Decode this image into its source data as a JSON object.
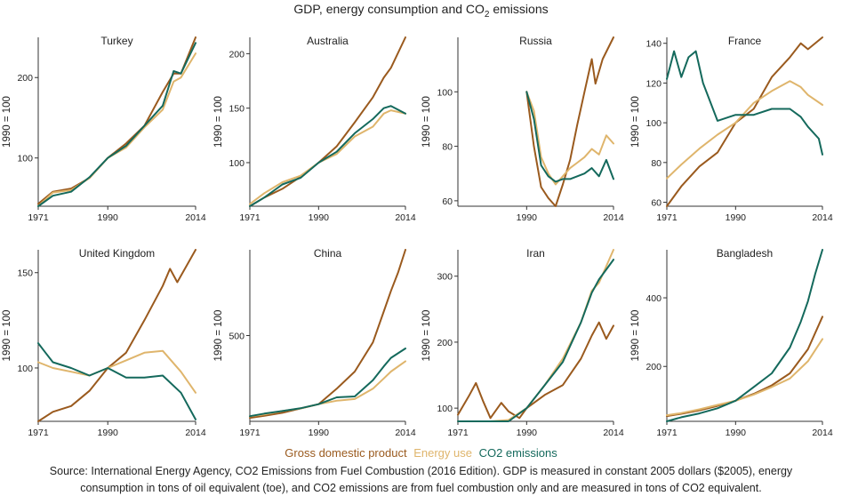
{
  "title": {
    "prefix": "GDP, energy consumption and CO",
    "sub": "2",
    "suffix": " emissions"
  },
  "legend": {
    "items": [
      {
        "label": "Gross domestic product",
        "color": "#9a5a1e"
      },
      {
        "label": "Energy use",
        "color": "#dfb56c"
      },
      {
        "label": "CO2 emissions",
        "color": "#14695c"
      }
    ]
  },
  "source": "Source: International Energy Agency, CO2 Emissions from Fuel Combustion (2016 Edition). GDP is measured in constant 2005 dollars ($2005), energy consumption in tons of oil equivalent (toe), and CO2 emissions are from fuel combustion only and are measured in tons of CO2 equivalent.",
  "chart_data": [
    {
      "type": "line",
      "title": "Turkey",
      "ylabel": "1990 = 100",
      "xticks": [
        1971,
        1990,
        2014
      ],
      "yticks": [
        100,
        200
      ],
      "xlim": [
        1971,
        2014
      ],
      "ylim": [
        40,
        250
      ],
      "series": [
        {
          "name": "Gross domestic product",
          "x": [
            1971,
            1975,
            1980,
            1985,
            1990,
            1995,
            2000,
            2005,
            2008,
            2010,
            2014
          ],
          "values": [
            43,
            58,
            62,
            75,
            100,
            118,
            140,
            182,
            205,
            205,
            252
          ]
        },
        {
          "name": "Energy use",
          "x": [
            1971,
            1975,
            1980,
            1985,
            1990,
            1995,
            2000,
            2005,
            2008,
            2010,
            2014
          ],
          "values": [
            40,
            57,
            60,
            75,
            100,
            113,
            138,
            160,
            195,
            200,
            230
          ]
        },
        {
          "name": "CO2 emissions",
          "x": [
            1971,
            1975,
            1980,
            1985,
            1990,
            1995,
            2000,
            2005,
            2008,
            2010,
            2014
          ],
          "values": [
            38,
            53,
            58,
            76,
            100,
            115,
            140,
            165,
            208,
            205,
            243
          ]
        }
      ]
    },
    {
      "type": "line",
      "title": "Australia",
      "ylabel": "1990 = 100",
      "xticks": [
        1971,
        1990,
        2014
      ],
      "yticks": [
        100,
        150,
        200
      ],
      "xlim": [
        1971,
        2014
      ],
      "ylim": [
        60,
        215
      ],
      "series": [
        {
          "name": "Gross domestic product",
          "x": [
            1971,
            1975,
            1980,
            1985,
            1990,
            1995,
            2000,
            2005,
            2008,
            2010,
            2014
          ],
          "values": [
            60,
            68,
            76,
            87,
            100,
            115,
            137,
            160,
            178,
            187,
            215
          ]
        },
        {
          "name": "Energy use",
          "x": [
            1971,
            1975,
            1980,
            1985,
            1990,
            1995,
            2000,
            2005,
            2008,
            2010,
            2014
          ],
          "values": [
            62,
            72,
            82,
            88,
            100,
            108,
            124,
            133,
            145,
            148,
            145
          ]
        },
        {
          "name": "CO2 emissions",
          "x": [
            1971,
            1975,
            1980,
            1985,
            1990,
            1995,
            2000,
            2005,
            2008,
            2010,
            2014
          ],
          "values": [
            60,
            68,
            80,
            86,
            100,
            110,
            127,
            140,
            150,
            152,
            145
          ]
        }
      ]
    },
    {
      "type": "line",
      "title": "Russia",
      "ylabel": "1990 = 100",
      "xticks": [
        1990,
        2014
      ],
      "yticks": [
        60,
        80,
        100
      ],
      "xlim": [
        1971,
        2014
      ],
      "ylim": [
        58,
        120
      ],
      "series": [
        {
          "name": "Gross domestic product",
          "x": [
            1990,
            1992,
            1994,
            1996,
            1998,
            2000,
            2002,
            2004,
            2006,
            2008,
            2009,
            2011,
            2014
          ],
          "values": [
            100,
            80,
            65,
            61,
            57,
            66,
            75,
            88,
            100,
            112,
            103,
            112,
            120
          ]
        },
        {
          "name": "Energy use",
          "x": [
            1990,
            1992,
            1994,
            1996,
            1998,
            2000,
            2002,
            2004,
            2006,
            2008,
            2010,
            2012,
            2014
          ],
          "values": [
            100,
            93,
            76,
            70,
            66,
            69,
            72,
            74,
            76,
            79,
            77,
            84,
            81
          ]
        },
        {
          "name": "CO2 emissions",
          "x": [
            1990,
            1992,
            1994,
            1996,
            1998,
            2000,
            2002,
            2004,
            2006,
            2008,
            2010,
            2012,
            2014
          ],
          "values": [
            100,
            90,
            73,
            69,
            67,
            68,
            68,
            69,
            70,
            72,
            69,
            75,
            68
          ]
        }
      ]
    },
    {
      "type": "line",
      "title": "France",
      "ylabel": "1990 = 100",
      "xticks": [
        1971,
        1990,
        2014
      ],
      "yticks": [
        60,
        80,
        100,
        120,
        140
      ],
      "xlim": [
        1971,
        2014
      ],
      "ylim": [
        58,
        143
      ],
      "series": [
        {
          "name": "Gross domestic product",
          "x": [
            1971,
            1975,
            1980,
            1985,
            1990,
            1995,
            2000,
            2005,
            2008,
            2010,
            2014
          ],
          "values": [
            58,
            68,
            78,
            85,
            100,
            107,
            123,
            133,
            140,
            137,
            143
          ]
        },
        {
          "name": "Energy use",
          "x": [
            1971,
            1975,
            1980,
            1985,
            1990,
            1995,
            2000,
            2005,
            2008,
            2010,
            2014
          ],
          "values": [
            72,
            79,
            87,
            94,
            100,
            110,
            116,
            121,
            118,
            114,
            109
          ]
        },
        {
          "name": "CO2 emissions",
          "x": [
            1971,
            1973,
            1975,
            1977,
            1979,
            1981,
            1985,
            1990,
            1995,
            2000,
            2005,
            2008,
            2010,
            2013,
            2014
          ],
          "values": [
            122,
            136,
            123,
            133,
            136,
            120,
            101,
            104,
            104,
            107,
            107,
            103,
            98,
            92,
            84
          ]
        }
      ]
    },
    {
      "type": "line",
      "title": "United Kingdom",
      "ylabel": "1990 = 100",
      "xticks": [
        1971,
        1990,
        2014
      ],
      "yticks": [
        100,
        150
      ],
      "xlim": [
        1971,
        2014
      ],
      "ylim": [
        72,
        162
      ],
      "series": [
        {
          "name": "Gross domestic product",
          "x": [
            1971,
            1975,
            1980,
            1985,
            1990,
            1995,
            2000,
            2005,
            2007,
            2009,
            2014
          ],
          "values": [
            71,
            77,
            80,
            88,
            100,
            108,
            125,
            143,
            152,
            145,
            162
          ]
        },
        {
          "name": "Energy use",
          "x": [
            1971,
            1975,
            1980,
            1985,
            1990,
            1995,
            2000,
            2005,
            2010,
            2014
          ],
          "values": [
            103,
            100,
            98,
            96,
            100,
            104,
            108,
            109,
            98,
            87
          ]
        },
        {
          "name": "CO2 emissions",
          "x": [
            1971,
            1973,
            1975,
            1980,
            1985,
            1990,
            1995,
            2000,
            2005,
            2010,
            2014
          ],
          "values": [
            113,
            108,
            103,
            100,
            96,
            100,
            95,
            95,
            96,
            87,
            73
          ]
        }
      ]
    },
    {
      "type": "line",
      "title": "China",
      "ylabel": "1990 = 100",
      "xticks": [
        1971,
        1990,
        2014
      ],
      "yticks": [
        500
      ],
      "xlim": [
        1971,
        2014
      ],
      "ylim": [
        0,
        1000
      ],
      "series": [
        {
          "name": "Gross domestic product",
          "x": [
            1971,
            1975,
            1980,
            1985,
            1990,
            1995,
            2000,
            2005,
            2008,
            2010,
            2012,
            2014
          ],
          "values": [
            20,
            32,
            50,
            75,
            100,
            190,
            290,
            460,
            640,
            760,
            870,
            1000
          ]
        },
        {
          "name": "Energy use",
          "x": [
            1971,
            1975,
            1980,
            1985,
            1990,
            1995,
            2000,
            2005,
            2008,
            2010,
            2014
          ],
          "values": [
            30,
            40,
            60,
            75,
            100,
            120,
            130,
            190,
            250,
            290,
            350
          ]
        },
        {
          "name": "CO2 emissions",
          "x": [
            1971,
            1975,
            1980,
            1985,
            1990,
            1995,
            2000,
            2005,
            2008,
            2010,
            2014
          ],
          "values": [
            30,
            45,
            60,
            76,
            100,
            140,
            145,
            240,
            320,
            370,
            425
          ]
        }
      ]
    },
    {
      "type": "line",
      "title": "Iran",
      "ylabel": "1990 = 100",
      "xticks": [
        1971,
        1990,
        2014
      ],
      "yticks": [
        100,
        200,
        300
      ],
      "xlim": [
        1971,
        2014
      ],
      "ylim": [
        80,
        340
      ],
      "series": [
        {
          "name": "Gross domestic product",
          "x": [
            1971,
            1974,
            1976,
            1978,
            1980,
            1983,
            1985,
            1988,
            1990,
            1995,
            2000,
            2005,
            2008,
            2010,
            2012,
            2014
          ],
          "values": [
            90,
            118,
            138,
            110,
            85,
            108,
            95,
            85,
            100,
            120,
            135,
            175,
            210,
            230,
            205,
            225
          ]
        },
        {
          "name": "Energy use",
          "x": [
            1971,
            1975,
            1980,
            1985,
            1990,
            1995,
            2000,
            2005,
            2008,
            2010,
            2014
          ],
          "values": [
            45,
            56,
            70,
            82,
            100,
            135,
            175,
            230,
            278,
            290,
            340
          ]
        },
        {
          "name": "CO2 emissions",
          "x": [
            1971,
            1975,
            1980,
            1985,
            1990,
            1995,
            2000,
            2005,
            2008,
            2010,
            2014
          ],
          "values": [
            43,
            55,
            70,
            80,
            100,
            135,
            170,
            230,
            275,
            295,
            325
          ]
        }
      ]
    },
    {
      "type": "line",
      "title": "Bangladesh",
      "ylabel": "1990 = 100",
      "xticks": [
        1971,
        1990,
        2014
      ],
      "yticks": [
        200,
        400
      ],
      "xlim": [
        1971,
        2014
      ],
      "ylim": [
        40,
        540
      ],
      "series": [
        {
          "name": "Gross domestic product",
          "x": [
            1971,
            1975,
            1980,
            1985,
            1990,
            1995,
            2000,
            2005,
            2010,
            2014
          ],
          "values": [
            55,
            62,
            72,
            85,
            100,
            120,
            145,
            180,
            250,
            345
          ]
        },
        {
          "name": "Energy use",
          "x": [
            1971,
            1975,
            1980,
            1985,
            1990,
            1995,
            2000,
            2005,
            2010,
            2014
          ],
          "values": [
            58,
            64,
            75,
            88,
            100,
            118,
            140,
            165,
            215,
            280
          ]
        },
        {
          "name": "CO2 emissions",
          "x": [
            1971,
            1975,
            1980,
            1985,
            1990,
            1995,
            2000,
            2005,
            2008,
            2010,
            2012,
            2014
          ],
          "values": [
            40,
            52,
            63,
            78,
            100,
            140,
            180,
            255,
            330,
            390,
            470,
            540
          ]
        }
      ]
    }
  ]
}
